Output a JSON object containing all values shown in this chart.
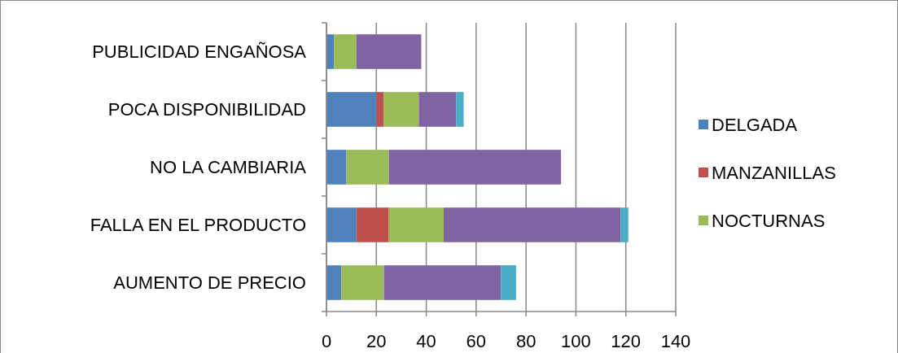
{
  "chart_data": {
    "type": "bar",
    "orientation": "horizontal",
    "stacked": true,
    "categories": [
      "PUBLICIDAD ENGAÑOSA",
      "POCA DISPONIBILIDAD",
      "NO LA CAMBIARIA",
      "FALLA EN EL PRODUCTO",
      "AUMENTO DE PRECIO"
    ],
    "series": [
      {
        "name": "DELGADA",
        "color": "#4f81bd",
        "values": [
          3,
          20,
          8,
          12,
          6
        ]
      },
      {
        "name": "MANZANILLAS",
        "color": "#c0504d",
        "values": [
          null,
          3,
          null,
          13,
          null
        ]
      },
      {
        "name": "NOCTURNAS",
        "color": "#9bbb59",
        "values": [
          9,
          14,
          17,
          22,
          17
        ]
      },
      {
        "color": "#8064a2",
        "values": [
          26,
          15,
          69,
          71,
          47
        ]
      },
      {
        "color": "#4bacc6",
        "values": [
          null,
          3,
          null,
          3,
          6
        ]
      }
    ],
    "xlim": [
      0,
      140
    ],
    "xticks": [
      0,
      20,
      40,
      60,
      80,
      100,
      120,
      140
    ],
    "grid": "x",
    "legend": "right"
  }
}
